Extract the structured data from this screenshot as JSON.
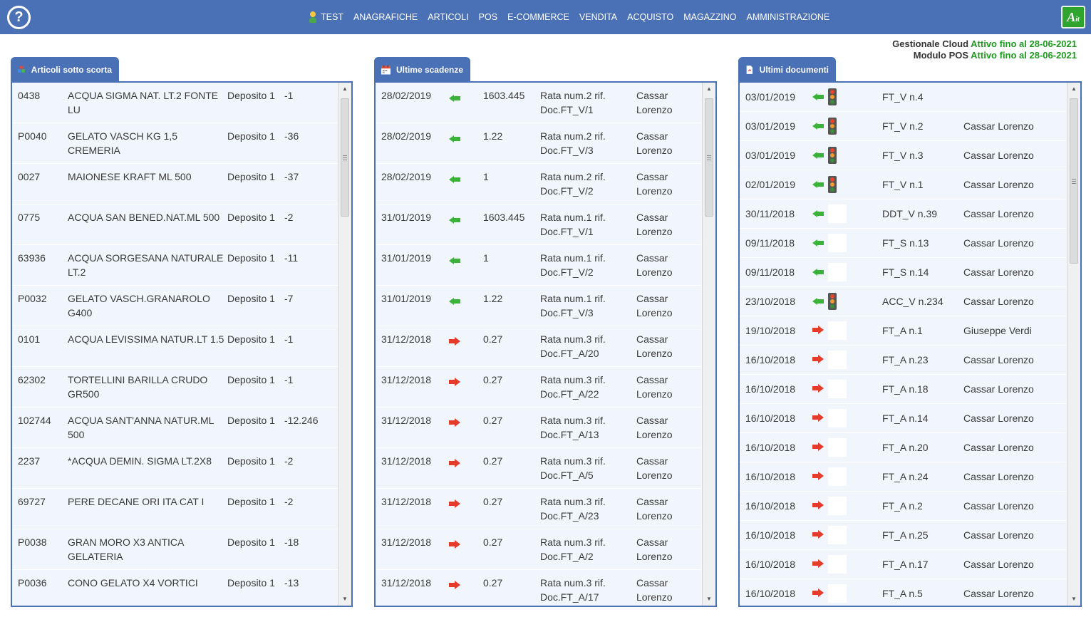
{
  "header": {
    "help_label": "?",
    "nav": [
      "TEST",
      "ANAGRAFICHE",
      "ARTICOLI",
      "POS",
      "E-COMMERCE",
      "VENDITA",
      "ACQUISTO",
      "MAGAZZINO",
      "AMMINISTRAZIONE"
    ],
    "logo_text": "A",
    "logo_suffix": "it"
  },
  "license": {
    "line1_label": "Gestionale Cloud",
    "line1_status": "Attivo fino al 28-06-2021",
    "line2_label": "Modulo POS",
    "line2_status": "Attivo fino al 28-06-2021"
  },
  "panels": {
    "stock": {
      "title": "Articoli sotto scorta",
      "rows": [
        {
          "code": "0438",
          "desc": "ACQUA SIGMA NAT. LT.2 FONTE LU",
          "store": "Deposito 1",
          "qty": "-1"
        },
        {
          "code": "P0040",
          "desc": "GELATO VASCH KG 1,5 CREMERIA",
          "store": "Deposito 1",
          "qty": "-36"
        },
        {
          "code": "0027",
          "desc": "MAIONESE KRAFT ML 500",
          "store": "Deposito 1",
          "qty": "-37"
        },
        {
          "code": "0775",
          "desc": "ACQUA SAN BENED.NAT.ML 500",
          "store": "Deposito 1",
          "qty": "-2"
        },
        {
          "code": "63936",
          "desc": "ACQUA SORGESANA NATURALE LT.2",
          "store": "Deposito 1",
          "qty": "-11"
        },
        {
          "code": "P0032",
          "desc": "GELATO VASCH.GRANAROLO G400",
          "store": "Deposito 1",
          "qty": "-7"
        },
        {
          "code": "0101",
          "desc": "ACQUA LEVISSIMA NATUR.LT 1.5",
          "store": "Deposito 1",
          "qty": "-1"
        },
        {
          "code": "62302",
          "desc": "TORTELLINI BARILLA CRUDO GR500",
          "store": "Deposito 1",
          "qty": "-1"
        },
        {
          "code": "102744",
          "desc": "ACQUA SANT'ANNA NATUR.ML 500",
          "store": "Deposito 1",
          "qty": "-12.246"
        },
        {
          "code": "2237",
          "desc": "*ACQUA DEMIN. SIGMA LT.2X8",
          "store": "Deposito 1",
          "qty": "-2"
        },
        {
          "code": "69727",
          "desc": "PERE DECANE ORI ITA CAT I",
          "store": "Deposito 1",
          "qty": "-2"
        },
        {
          "code": "P0038",
          "desc": "GRAN MORO X3 ANTICA GELATERIA",
          "store": "Deposito 1",
          "qty": "-18"
        },
        {
          "code": "P0036",
          "desc": "CONO GELATO X4 VORTICI",
          "store": "Deposito 1",
          "qty": "-13"
        }
      ]
    },
    "due": {
      "title": "Ultime scadenze",
      "rows": [
        {
          "date": "28/02/2019",
          "dir": "in",
          "amount": "1603.445",
          "desc": "Rata num.2 rif. Doc.FT_V/1",
          "name": "Cassar Lorenzo"
        },
        {
          "date": "28/02/2019",
          "dir": "in",
          "amount": "1.22",
          "desc": "Rata num.2 rif. Doc.FT_V/3",
          "name": "Cassar Lorenzo"
        },
        {
          "date": "28/02/2019",
          "dir": "in",
          "amount": "1",
          "desc": "Rata num.2 rif. Doc.FT_V/2",
          "name": "Cassar Lorenzo"
        },
        {
          "date": "31/01/2019",
          "dir": "in",
          "amount": "1603.445",
          "desc": "Rata num.1 rif. Doc.FT_V/1",
          "name": "Cassar Lorenzo"
        },
        {
          "date": "31/01/2019",
          "dir": "in",
          "amount": "1",
          "desc": "Rata num.1 rif. Doc.FT_V/2",
          "name": "Cassar Lorenzo"
        },
        {
          "date": "31/01/2019",
          "dir": "in",
          "amount": "1.22",
          "desc": "Rata num.1 rif. Doc.FT_V/3",
          "name": "Cassar Lorenzo"
        },
        {
          "date": "31/12/2018",
          "dir": "out",
          "amount": "0.27",
          "desc": "Rata num.3 rif. Doc.FT_A/20",
          "name": "Cassar Lorenzo"
        },
        {
          "date": "31/12/2018",
          "dir": "out",
          "amount": "0.27",
          "desc": "Rata num.3 rif. Doc.FT_A/22",
          "name": "Cassar Lorenzo"
        },
        {
          "date": "31/12/2018",
          "dir": "out",
          "amount": "0.27",
          "desc": "Rata num.3 rif. Doc.FT_A/13",
          "name": "Cassar Lorenzo"
        },
        {
          "date": "31/12/2018",
          "dir": "out",
          "amount": "0.27",
          "desc": "Rata num.3 rif. Doc.FT_A/5",
          "name": "Cassar Lorenzo"
        },
        {
          "date": "31/12/2018",
          "dir": "out",
          "amount": "0.27",
          "desc": "Rata num.3 rif. Doc.FT_A/23",
          "name": "Cassar Lorenzo"
        },
        {
          "date": "31/12/2018",
          "dir": "out",
          "amount": "0.27",
          "desc": "Rata num.3 rif. Doc.FT_A/2",
          "name": "Cassar Lorenzo"
        },
        {
          "date": "31/12/2018",
          "dir": "out",
          "amount": "0.27",
          "desc": "Rata num.3 rif. Doc.FT_A/17",
          "name": "Cassar Lorenzo"
        }
      ]
    },
    "docs": {
      "title": "Ultimi documenti",
      "rows": [
        {
          "date": "03/01/2019",
          "dir": "in",
          "light": true,
          "doc": "FT_V n.4",
          "name": ""
        },
        {
          "date": "03/01/2019",
          "dir": "in",
          "light": true,
          "doc": "FT_V n.2",
          "name": "Cassar Lorenzo"
        },
        {
          "date": "03/01/2019",
          "dir": "in",
          "light": true,
          "doc": "FT_V n.3",
          "name": "Cassar Lorenzo"
        },
        {
          "date": "02/01/2019",
          "dir": "in",
          "light": true,
          "doc": "FT_V n.1",
          "name": "Cassar Lorenzo"
        },
        {
          "date": "30/11/2018",
          "dir": "in",
          "light": false,
          "doc": "DDT_V n.39",
          "name": "Cassar Lorenzo"
        },
        {
          "date": "09/11/2018",
          "dir": "in",
          "light": false,
          "doc": "FT_S n.13",
          "name": "Cassar Lorenzo"
        },
        {
          "date": "09/11/2018",
          "dir": "in",
          "light": false,
          "doc": "FT_S n.14",
          "name": "Cassar Lorenzo"
        },
        {
          "date": "23/10/2018",
          "dir": "in",
          "light": true,
          "doc": "ACC_V n.234",
          "name": "Cassar Lorenzo"
        },
        {
          "date": "19/10/2018",
          "dir": "out",
          "light": false,
          "doc": "FT_A n.1",
          "name": "Giuseppe Verdi"
        },
        {
          "date": "16/10/2018",
          "dir": "out",
          "light": false,
          "doc": "FT_A n.23",
          "name": "Cassar Lorenzo"
        },
        {
          "date": "16/10/2018",
          "dir": "out",
          "light": false,
          "doc": "FT_A n.18",
          "name": "Cassar Lorenzo"
        },
        {
          "date": "16/10/2018",
          "dir": "out",
          "light": false,
          "doc": "FT_A n.14",
          "name": "Cassar Lorenzo"
        },
        {
          "date": "16/10/2018",
          "dir": "out",
          "light": false,
          "doc": "FT_A n.20",
          "name": "Cassar Lorenzo"
        },
        {
          "date": "16/10/2018",
          "dir": "out",
          "light": false,
          "doc": "FT_A n.24",
          "name": "Cassar Lorenzo"
        },
        {
          "date": "16/10/2018",
          "dir": "out",
          "light": false,
          "doc": "FT_A n.2",
          "name": "Cassar Lorenzo"
        },
        {
          "date": "16/10/2018",
          "dir": "out",
          "light": false,
          "doc": "FT_A n.25",
          "name": "Cassar Lorenzo"
        },
        {
          "date": "16/10/2018",
          "dir": "out",
          "light": false,
          "doc": "FT_A n.17",
          "name": "Cassar Lorenzo"
        },
        {
          "date": "16/10/2018",
          "dir": "out",
          "light": false,
          "doc": "FT_A n.5",
          "name": "Cassar Lorenzo"
        }
      ]
    }
  },
  "icons": {
    "help": "help-icon",
    "user": "user-icon",
    "stock_tab": "boxes-icon",
    "due_tab": "calendar-icon",
    "docs_tab": "pdf-icon",
    "incoming": "arrow-left-green-icon",
    "outgoing": "arrow-right-red-icon",
    "status": "traffic-light-icon"
  },
  "colors": {
    "header_bg": "#4a70b6",
    "panel_bg": "#f1f6fd",
    "active_green": "#1f9a1f",
    "arrow_green": "#3bb33b",
    "arrow_red": "#e43b2b"
  }
}
